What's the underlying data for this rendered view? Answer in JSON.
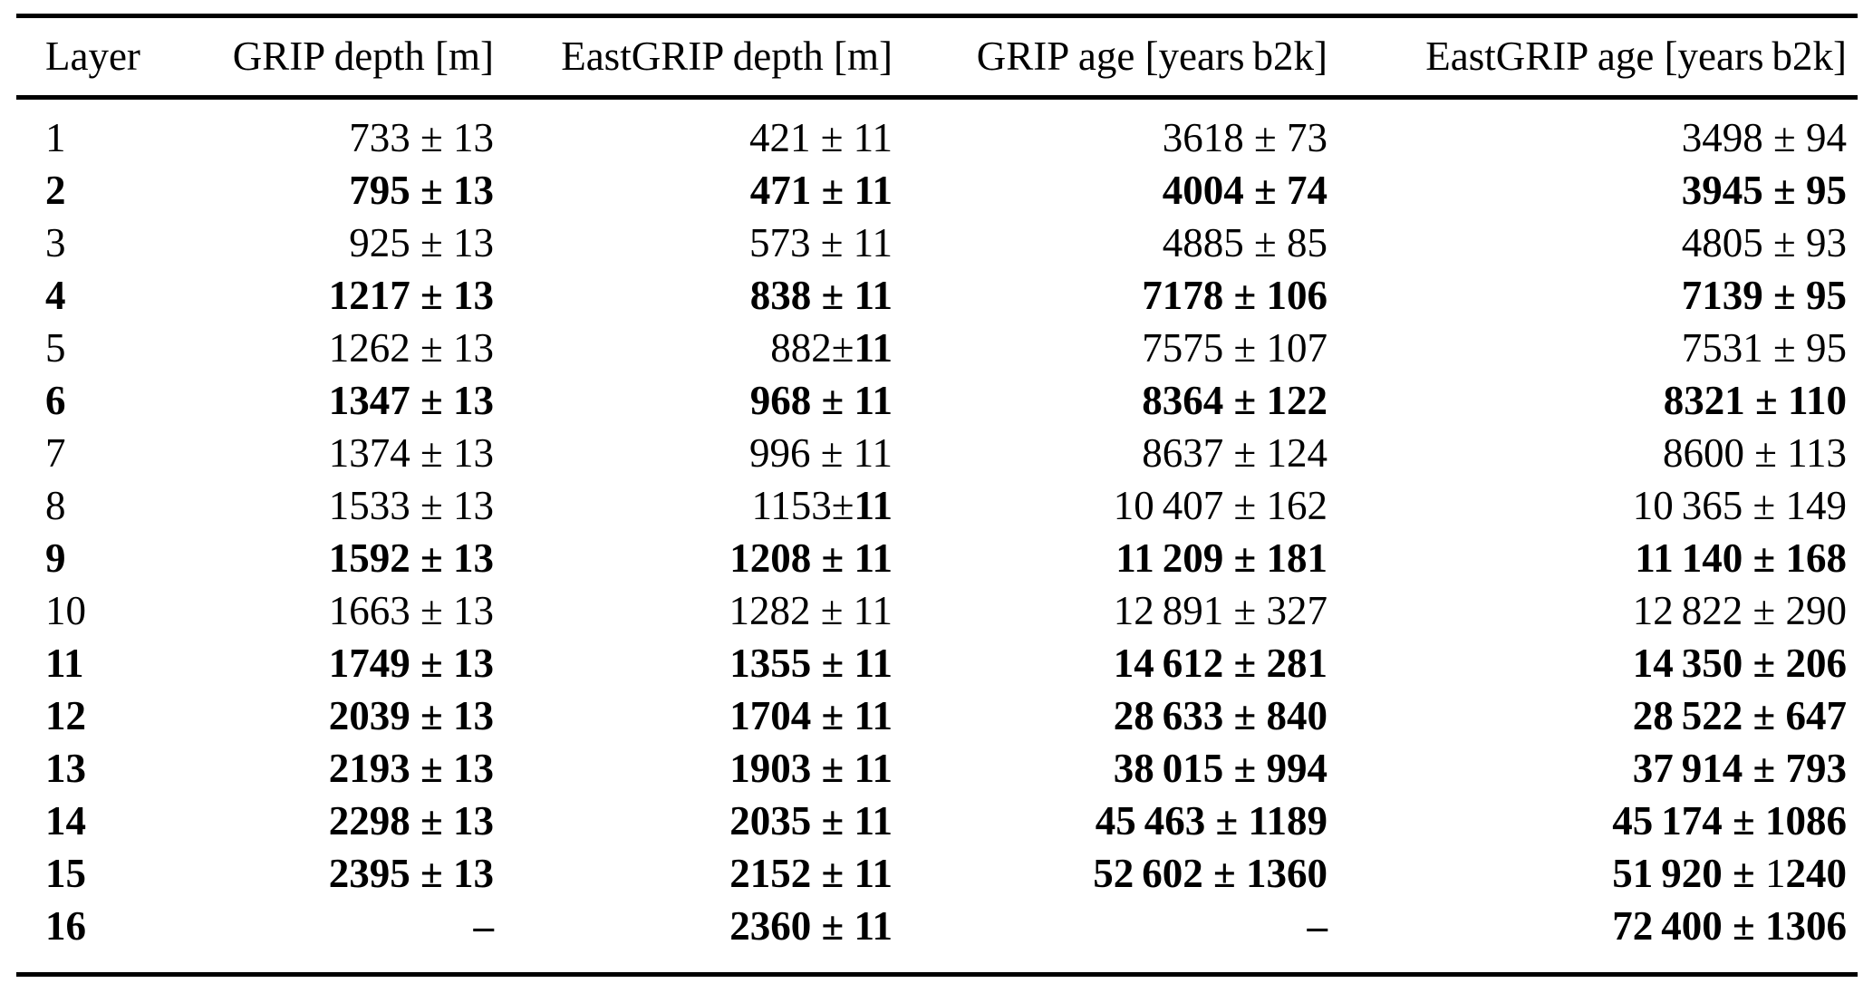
{
  "page": {
    "background_color": "#ffffff",
    "text_color": "#000000",
    "rule_color": "#000000"
  },
  "table": {
    "columns": [
      {
        "label": "Layer"
      },
      {
        "label": "GRIP depth [m]"
      },
      {
        "label": "EastGRIP depth [m]"
      },
      {
        "label": "GRIP age [years b2k]"
      },
      {
        "label": "EastGRIP age [years b2k]"
      }
    ],
    "rows": [
      {
        "bold": false,
        "cells": [
          "1",
          "733 ± 13",
          "421 ± 11",
          "3618 ± 73",
          "3498 ± 94"
        ]
      },
      {
        "bold": true,
        "cells": [
          "2",
          "795 ± 13",
          "471 ± 11",
          "4004 ± 74",
          "3945 ± 95"
        ]
      },
      {
        "bold": false,
        "cells": [
          "3",
          "925 ± 13",
          "573 ± 11",
          "4885 ± 85",
          "4805 ± 93"
        ]
      },
      {
        "bold": true,
        "cells": [
          "4",
          "1217 ± 13",
          "838 ± 11",
          "7178 ± 106",
          "7139 ± 95"
        ]
      },
      {
        "bold": false,
        "cells": [
          "5",
          "1262 ± 13",
          [
            {
              "t": "882±",
              "b": false
            },
            {
              "t": "11",
              "b": true
            }
          ],
          "7575 ± 107",
          "7531 ± 95"
        ]
      },
      {
        "bold": true,
        "cells": [
          "6",
          "1347 ± 13",
          "968 ± 11",
          "8364 ± 122",
          "8321 ± 110"
        ]
      },
      {
        "bold": false,
        "cells": [
          "7",
          "1374 ± 13",
          "996 ± 11",
          "8637 ± 124",
          "8600 ± 113"
        ]
      },
      {
        "bold": false,
        "cells": [
          "8",
          "1533 ± 13",
          [
            {
              "t": "1153±",
              "b": false
            },
            {
              "t": "11",
              "b": true
            }
          ],
          "10 407 ± 162",
          "10 365 ± 149"
        ]
      },
      {
        "bold": true,
        "cells": [
          "9",
          "1592 ± 13",
          "1208 ± 11",
          "11 209 ± 181",
          "11 140 ± 168"
        ]
      },
      {
        "bold": false,
        "cells": [
          "10",
          "1663 ± 13",
          "1282 ± 11",
          "12 891 ± 327",
          "12 822 ± 290"
        ]
      },
      {
        "bold": true,
        "cells": [
          "11",
          "1749 ± 13",
          "1355 ± 11",
          "14 612 ± 281",
          "14 350 ± 206"
        ]
      },
      {
        "bold": true,
        "cells": [
          "12",
          "2039 ± 13",
          "1704 ± 11",
          "28 633 ± 840",
          "28 522 ± 647"
        ]
      },
      {
        "bold": true,
        "cells": [
          "13",
          "2193 ± 13",
          "1903 ± 11",
          "38 015 ± 994",
          "37 914 ± 793"
        ]
      },
      {
        "bold": true,
        "cells": [
          "14",
          "2298 ± 13",
          "2035 ± 11",
          "45 463 ± 1189",
          "45 174 ± 1086"
        ]
      },
      {
        "bold": true,
        "cells": [
          "15",
          "2395 ± 13",
          "2152 ± 11",
          "52 602 ± 1360",
          [
            {
              "t": "51 920 ± ",
              "b": true
            },
            {
              "t": "1",
              "b": false
            },
            {
              "t": "240",
              "b": true
            }
          ]
        ]
      },
      {
        "bold": true,
        "cells": [
          "16",
          "–",
          "2360 ± 11",
          "–",
          "72 400 ± 1306"
        ]
      }
    ]
  }
}
